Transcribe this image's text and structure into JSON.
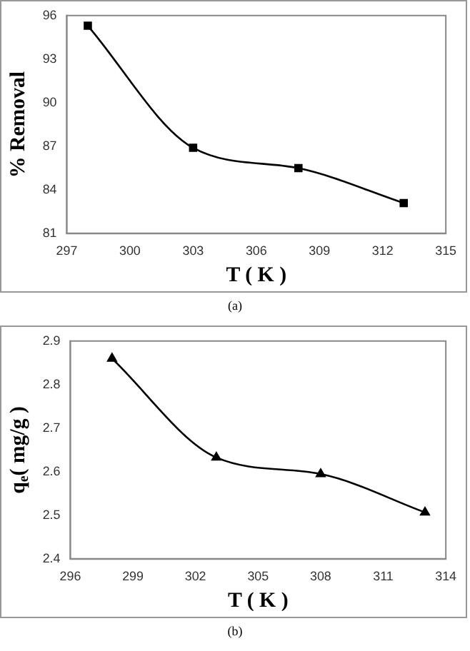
{
  "chart_data": [
    {
      "type": "line",
      "xlabel": "T ( K )",
      "ylabel": "% Removal",
      "x": [
        298,
        303,
        308,
        313
      ],
      "values": [
        95.3,
        86.9,
        85.5,
        83.1
      ],
      "color": "#000000",
      "xlim": [
        297,
        315
      ],
      "xticks": [
        297,
        300,
        303,
        306,
        309,
        312,
        315
      ],
      "ylim": [
        81,
        96
      ],
      "yticks": [
        81,
        84,
        87,
        90,
        93,
        96
      ],
      "marker": "square",
      "grid": false,
      "legend": false,
      "annotations": [
        "(a)"
      ]
    },
    {
      "type": "line",
      "xlabel": "T ( K )",
      "ylabel": "q$_{e}$( mg/g )",
      "x": [
        298,
        303,
        308,
        313
      ],
      "values": [
        2.86,
        2.633,
        2.595,
        2.507
      ],
      "color": "#000000",
      "xlim": [
        296,
        314
      ],
      "xticks": [
        296,
        299,
        302,
        305,
        308,
        311,
        314
      ],
      "ylim": [
        2.4,
        2.9
      ],
      "yticks": [
        2.4,
        2.5,
        2.6,
        2.7,
        2.8,
        2.9
      ],
      "marker": "triangle",
      "grid": false,
      "legend": false,
      "annotations": [
        "(b)"
      ]
    }
  ]
}
